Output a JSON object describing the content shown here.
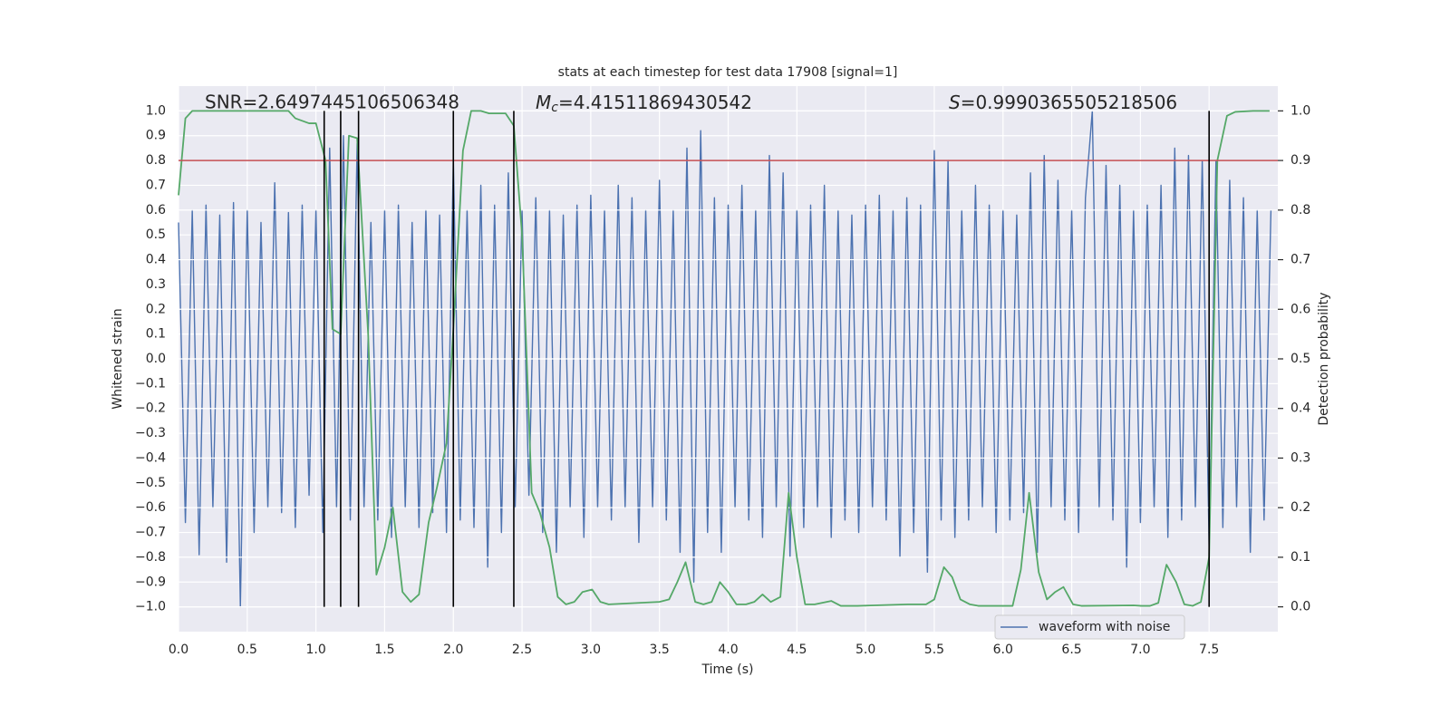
{
  "chart_data": {
    "type": "line",
    "title": "stats at each timestep for test data 17908 [signal=1]",
    "xlabel": "Time (s)",
    "ylabel": "Whitened strain",
    "y2label": "Detection probability",
    "xlim": [
      0,
      8
    ],
    "ylim": [
      -1.1,
      1.1
    ],
    "y2lim": [
      -0.05,
      1.05
    ],
    "grid": true,
    "legend": "lower right",
    "xticks": [
      {
        "value": 0,
        "label": "0.0"
      },
      {
        "value": 0.5,
        "label": "0.5"
      },
      {
        "value": 1,
        "label": "1.0"
      },
      {
        "value": 1.5,
        "label": "1.5"
      },
      {
        "value": 2,
        "label": "2.0"
      },
      {
        "value": 2.5,
        "label": "2.5"
      },
      {
        "value": 3,
        "label": "3.0"
      },
      {
        "value": 3.5,
        "label": "3.5"
      },
      {
        "value": 4,
        "label": "4.0"
      },
      {
        "value": 4.5,
        "label": "4.5"
      },
      {
        "value": 5,
        "label": "5.0"
      },
      {
        "value": 5.5,
        "label": "5.5"
      },
      {
        "value": 6,
        "label": "6.0"
      },
      {
        "value": 6.5,
        "label": "6.5"
      },
      {
        "value": 7,
        "label": "7.0"
      },
      {
        "value": 7.5,
        "label": "7.5"
      }
    ],
    "yticks": [
      {
        "value": -1,
        "label": "−1.0"
      },
      {
        "value": -0.9,
        "label": "−0.9"
      },
      {
        "value": -0.8,
        "label": "−0.8"
      },
      {
        "value": -0.7,
        "label": "−0.7"
      },
      {
        "value": -0.6,
        "label": "−0.6"
      },
      {
        "value": -0.5,
        "label": "−0.5"
      },
      {
        "value": -0.4,
        "label": "−0.4"
      },
      {
        "value": -0.3,
        "label": "−0.3"
      },
      {
        "value": -0.2,
        "label": "−0.2"
      },
      {
        "value": -0.1,
        "label": "−0.1"
      },
      {
        "value": 0,
        "label": "0.0"
      },
      {
        "value": 0.1,
        "label": "0.1"
      },
      {
        "value": 0.2,
        "label": "0.2"
      },
      {
        "value": 0.3,
        "label": "0.3"
      },
      {
        "value": 0.4,
        "label": "0.4"
      },
      {
        "value": 0.5,
        "label": "0.5"
      },
      {
        "value": 0.6,
        "label": "0.6"
      },
      {
        "value": 0.7,
        "label": "0.7"
      },
      {
        "value": 0.8,
        "label": "0.8"
      },
      {
        "value": 0.9,
        "label": "0.9"
      },
      {
        "value": 1,
        "label": "1.0"
      }
    ],
    "y2ticks": [
      {
        "value": 0,
        "label": "0.0"
      },
      {
        "value": 0.1,
        "label": "0.1"
      },
      {
        "value": 0.2,
        "label": "0.2"
      },
      {
        "value": 0.3,
        "label": "0.3"
      },
      {
        "value": 0.4,
        "label": "0.4"
      },
      {
        "value": 0.5,
        "label": "0.5"
      },
      {
        "value": 0.6,
        "label": "0.6"
      },
      {
        "value": 0.7,
        "label": "0.7"
      },
      {
        "value": 0.8,
        "label": "0.8"
      },
      {
        "value": 0.9,
        "label": "0.9"
      },
      {
        "value": 1,
        "label": "1.0"
      }
    ],
    "annotations": [
      {
        "text": "SNR=2.6497445106506348"
      },
      {
        "symbol": "M",
        "subscript": "c",
        "text": "=4.41511869430542"
      },
      {
        "symbol": "S",
        "text": "=0.9990365505218506"
      }
    ],
    "series": [
      {
        "name": "waveform with noise",
        "color": "#4c72b0",
        "x": [
          0,
          0.05,
          0.1,
          0.15,
          0.2,
          0.25,
          0.3,
          0.35,
          0.4,
          0.45,
          0.5,
          0.55,
          0.6,
          0.65,
          0.7,
          0.75,
          0.8,
          0.85,
          0.9,
          0.95,
          1,
          1.05,
          1.1,
          1.15,
          1.2,
          1.25,
          1.3,
          1.35,
          1.4,
          1.45,
          1.5,
          1.55,
          1.6,
          1.65,
          1.7,
          1.75,
          1.8,
          1.85,
          1.9,
          1.95,
          2,
          2.05,
          2.1,
          2.15,
          2.2,
          2.25,
          2.3,
          2.35,
          2.4,
          2.45,
          2.5,
          2.55,
          2.6,
          2.65,
          2.7,
          2.75,
          2.8,
          2.85,
          2.9,
          2.95,
          3,
          3.05,
          3.1,
          3.15,
          3.2,
          3.25,
          3.3,
          3.35,
          3.4,
          3.45,
          3.5,
          3.55,
          3.6,
          3.65,
          3.7,
          3.75,
          3.8,
          3.85,
          3.9,
          3.95,
          4,
          4.05,
          4.1,
          4.15,
          4.2,
          4.25,
          4.3,
          4.35,
          4.4,
          4.45,
          4.5,
          4.55,
          4.6,
          4.65,
          4.7,
          4.75,
          4.8,
          4.85,
          4.9,
          4.95,
          5,
          5.05,
          5.1,
          5.15,
          5.2,
          5.25,
          5.3,
          5.35,
          5.4,
          5.45,
          5.5,
          5.55,
          5.6,
          5.65,
          5.7,
          5.75,
          5.8,
          5.85,
          5.9,
          5.95,
          6,
          6.05,
          6.1,
          6.15,
          6.2,
          6.25,
          6.3,
          6.35,
          6.4,
          6.45,
          6.5,
          6.55,
          6.6,
          6.65,
          6.7,
          6.75,
          6.8,
          6.85,
          6.9,
          6.95,
          7,
          7.05,
          7.1,
          7.15,
          7.2,
          7.25,
          7.3,
          7.35,
          7.4,
          7.45,
          7.5,
          7.55,
          7.6,
          7.65,
          7.7,
          7.75,
          7.8,
          7.85,
          7.9,
          7.95
        ],
        "values": [
          0.55,
          -0.66,
          0.6,
          -0.79,
          0.62,
          -0.6,
          0.58,
          -0.82,
          0.63,
          -1.0,
          0.6,
          -0.7,
          0.55,
          -0.6,
          0.71,
          -0.62,
          0.59,
          -0.68,
          0.62,
          -0.55,
          0.6,
          -0.7,
          0.85,
          -0.6,
          0.9,
          -0.65,
          0.87,
          -0.6,
          0.55,
          -0.65,
          0.6,
          -0.72,
          0.62,
          -0.6,
          0.55,
          -0.68,
          0.6,
          -0.62,
          0.58,
          -0.7,
          0.8,
          -0.65,
          0.6,
          -0.68,
          0.7,
          -0.84,
          0.62,
          -0.7,
          0.75,
          -0.6,
          0.6,
          -0.55,
          0.65,
          -0.7,
          0.6,
          -0.78,
          0.58,
          -0.6,
          0.62,
          -0.72,
          0.66,
          -0.6,
          0.6,
          -0.65,
          0.7,
          -0.6,
          0.65,
          -0.74,
          0.6,
          -0.6,
          0.72,
          -0.65,
          0.6,
          -0.78,
          0.85,
          -0.9,
          0.92,
          -0.7,
          0.65,
          -0.78,
          0.62,
          -0.6,
          0.7,
          -0.65,
          0.6,
          -0.72,
          0.82,
          -0.6,
          0.75,
          -0.8,
          0.6,
          -0.68,
          0.62,
          -0.6,
          0.7,
          -0.72,
          0.6,
          -0.65,
          0.58,
          -0.7,
          0.62,
          -0.6,
          0.66,
          -0.65,
          0.6,
          -0.8,
          0.65,
          -0.7,
          0.62,
          -0.86,
          0.84,
          -0.65,
          0.8,
          -0.72,
          0.6,
          -0.65,
          0.7,
          -0.6,
          0.62,
          -0.7,
          0.6,
          -0.65,
          0.58,
          -0.62,
          0.75,
          -0.78,
          0.82,
          -0.6,
          0.72,
          -0.65,
          0.6,
          -0.7,
          0.65,
          1.0,
          -0.6,
          0.78,
          -0.65,
          0.7,
          -0.84,
          0.6,
          -0.66,
          0.62,
          -0.6,
          0.7,
          -0.72,
          0.85,
          -0.65,
          0.82,
          -0.6,
          0.8,
          -0.75,
          0.8,
          -0.68,
          0.72,
          -0.6,
          0.65,
          -0.78,
          0.6,
          -0.65,
          0.6
        ]
      },
      {
        "color": "#55a868",
        "axis": "y2",
        "x": [
          0,
          0.05,
          0.1,
          0.8,
          0.85,
          0.95,
          1,
          1.07,
          1.12,
          1.18,
          1.24,
          1.3,
          1.38,
          1.44,
          1.5,
          1.56,
          1.63,
          1.69,
          1.75,
          1.82,
          1.88,
          1.95,
          2,
          2.07,
          2.13,
          2.2,
          2.26,
          2.38,
          2.44,
          2.5,
          2.57,
          2.63,
          2.7,
          2.76,
          2.82,
          2.88,
          2.94,
          3.01,
          3.07,
          3.13,
          3.5,
          3.57,
          3.63,
          3.69,
          3.76,
          3.82,
          3.88,
          3.94,
          4,
          4.06,
          4.13,
          4.19,
          4.25,
          4.31,
          4.38,
          4.44,
          4.5,
          4.56,
          4.63,
          4.75,
          4.82,
          4.94,
          5.06,
          5.31,
          5.44,
          5.5,
          5.57,
          5.63,
          5.69,
          5.76,
          5.82,
          6.07,
          6.13,
          6.19,
          6.26,
          6.32,
          6.38,
          6.44,
          6.51,
          6.57,
          6.95,
          7.01,
          7.07,
          7.13,
          7.19,
          7.26,
          7.32,
          7.38,
          7.44,
          7.5,
          7.56,
          7.63,
          7.69,
          7.82,
          7.94
        ],
        "values": [
          0.83,
          0.985,
          1.0,
          1.0,
          0.985,
          0.975,
          0.975,
          0.9,
          0.56,
          0.55,
          0.95,
          0.945,
          0.55,
          0.065,
          0.12,
          0.2,
          0.03,
          0.01,
          0.025,
          0.17,
          0.24,
          0.33,
          0.56,
          0.92,
          1.0,
          1.0,
          0.995,
          0.995,
          0.97,
          0.75,
          0.23,
          0.19,
          0.12,
          0.02,
          0.005,
          0.01,
          0.03,
          0.035,
          0.01,
          0.005,
          0.01,
          0.015,
          0.05,
          0.09,
          0.01,
          0.005,
          0.01,
          0.05,
          0.03,
          0.005,
          0.005,
          0.01,
          0.025,
          0.01,
          0.02,
          0.23,
          0.1,
          0.005,
          0.005,
          0.012,
          0.002,
          0.002,
          0.003,
          0.005,
          0.005,
          0.015,
          0.08,
          0.06,
          0.015,
          0.005,
          0.002,
          0.002,
          0.075,
          0.23,
          0.07,
          0.015,
          0.03,
          0.04,
          0.005,
          0.002,
          0.003,
          0.002,
          0.002,
          0.008,
          0.085,
          0.05,
          0.005,
          0.002,
          0.01,
          0.1,
          0.9,
          0.99,
          0.998,
          1.0,
          1.0
        ]
      }
    ],
    "threshold": {
      "value": 0.9,
      "axis": "y2",
      "color": "#c44e52"
    },
    "vlines": {
      "x": [
        1.06,
        1.18,
        1.31,
        2.0,
        2.44,
        7.5
      ],
      "ymin": -1,
      "ymax": 1,
      "color": "#000000"
    }
  }
}
